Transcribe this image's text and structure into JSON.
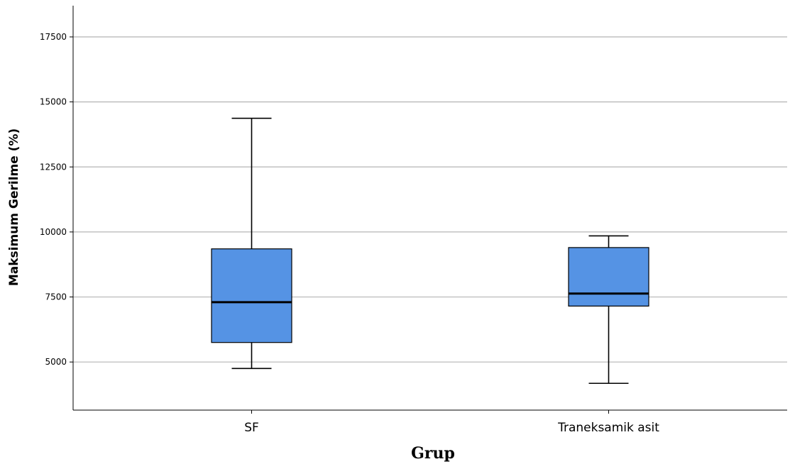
{
  "chart_data": {
    "type": "boxplot",
    "title": "",
    "xlabel": "Grup",
    "ylabel": "Maksimum Gerilme (%)",
    "ylim": [
      3150,
      18700
    ],
    "yticks": [
      5000,
      7500,
      10000,
      12500,
      15000,
      17500
    ],
    "yticks_labels": [
      "5000",
      "7500",
      "10000",
      "12500",
      "15000",
      "17500"
    ],
    "grid": "horizontal",
    "box_color": "#5593e4",
    "categories": [
      "SF",
      "Traneksamik asit"
    ],
    "boxes": [
      {
        "category": "SF",
        "min": 4750,
        "q1": 5750,
        "median": 7300,
        "q3": 9350,
        "max": 14370
      },
      {
        "category": "Traneksamik asit",
        "min": 4180,
        "q1": 7150,
        "median": 7630,
        "q3": 9400,
        "max": 9850
      }
    ]
  }
}
